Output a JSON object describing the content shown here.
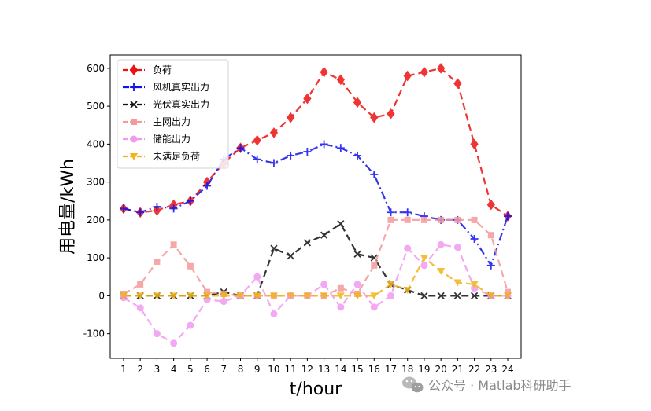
{
  "chart_data": {
    "type": "line",
    "xlabel": "t/hour",
    "ylabel": "用电量/kWh",
    "x": [
      1,
      2,
      3,
      4,
      5,
      6,
      7,
      8,
      9,
      10,
      11,
      12,
      13,
      14,
      15,
      16,
      17,
      18,
      19,
      20,
      21,
      22,
      23,
      24
    ],
    "xlim": [
      0.2,
      24.8
    ],
    "ylim": [
      -165,
      635
    ],
    "yticks": [
      -100,
      0,
      100,
      200,
      300,
      400,
      500,
      600
    ],
    "grid": false,
    "legend_position": "top-left",
    "series": [
      {
        "name": "负荷",
        "color": "#ee1111",
        "marker": "diamond",
        "dash": "dashed",
        "values": [
          230,
          220,
          225,
          240,
          250,
          300,
          350,
          390,
          410,
          430,
          470,
          520,
          590,
          570,
          510,
          470,
          480,
          580,
          590,
          600,
          560,
          400,
          240,
          210
        ]
      },
      {
        "name": "风机真实出力",
        "color": "#1111ee",
        "marker": "plus",
        "dash": "dashdot",
        "values": [
          230,
          220,
          235,
          230,
          250,
          290,
          360,
          390,
          360,
          350,
          370,
          380,
          400,
          390,
          370,
          320,
          220,
          220,
          210,
          200,
          200,
          150,
          80,
          210
        ]
      },
      {
        "name": "光伏真实出力",
        "color": "#111111",
        "marker": "x",
        "dash": "dashed",
        "values": [
          0,
          0,
          0,
          0,
          0,
          0,
          10,
          0,
          0,
          125,
          105,
          140,
          160,
          190,
          110,
          100,
          30,
          15,
          0,
          0,
          0,
          0,
          0,
          0
        ]
      },
      {
        "name": "主网出力",
        "color": "#f59a9a",
        "marker": "square",
        "dash": "dashed",
        "values": [
          5,
          30,
          90,
          135,
          78,
          10,
          5,
          0,
          0,
          0,
          0,
          0,
          0,
          20,
          5,
          80,
          200,
          200,
          200,
          200,
          200,
          200,
          160,
          10
        ]
      },
      {
        "name": "储能出力",
        "color": "#f29af2",
        "marker": "circle",
        "dash": "dashed",
        "values": [
          -5,
          -32,
          -100,
          -125,
          -78,
          -10,
          -15,
          0,
          50,
          -48,
          0,
          0,
          30,
          -30,
          30,
          -30,
          0,
          125,
          80,
          135,
          128,
          20,
          0,
          0
        ]
      },
      {
        "name": "未满足负荷",
        "color": "#f2b41a",
        "marker": "triangle-down",
        "dash": "dashed",
        "values": [
          0,
          0,
          0,
          0,
          0,
          0,
          0,
          0,
          0,
          0,
          0,
          0,
          0,
          0,
          0,
          0,
          30,
          15,
          100,
          65,
          35,
          30,
          0,
          0
        ]
      }
    ]
  },
  "watermark": {
    "text": "公众号 · Matlab科研助手",
    "icon": "wechat-icon"
  }
}
